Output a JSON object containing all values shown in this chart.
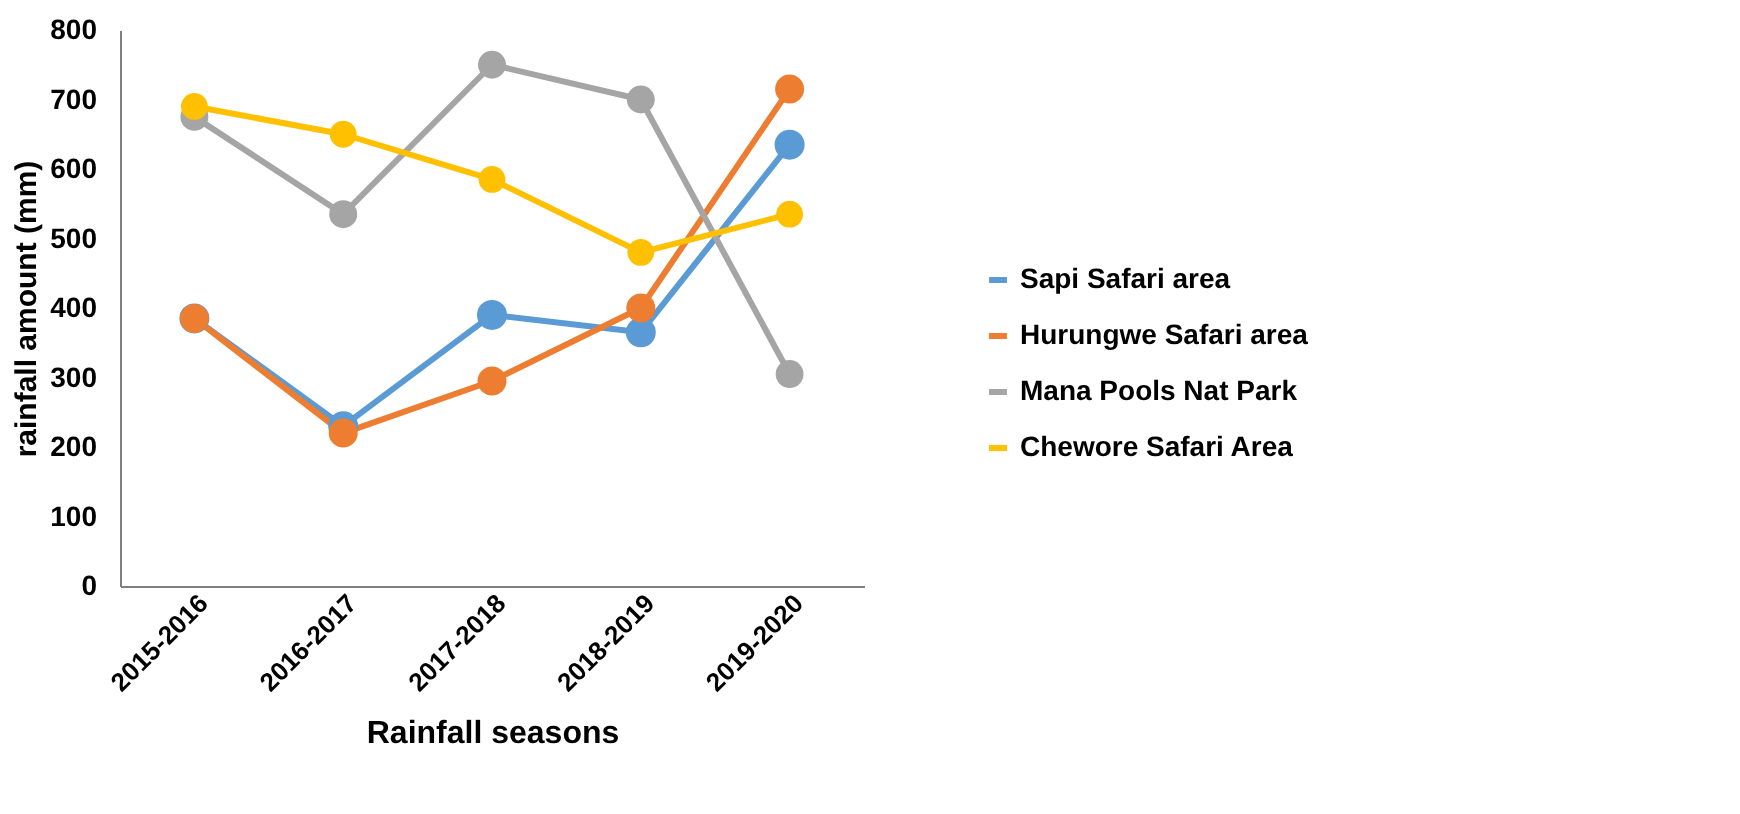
{
  "chart_data": {
    "type": "line",
    "xlabel": "Rainfall seasons",
    "ylabel": "rainfall amount  (mm)",
    "categories": [
      "2015-2016",
      "2016-2017",
      "2017-2018",
      "2018-2019",
      "2019-2020"
    ],
    "series": [
      {
        "name": "Sapi Safari area",
        "color": "#5b9bd5",
        "values": [
          385,
          230,
          390,
          365,
          635
        ]
      },
      {
        "name": "Hurungwe Safari area",
        "color": "#ed7d31",
        "values": [
          385,
          220,
          295,
          400,
          715
        ]
      },
      {
        "name": "Mana Pools Nat Park",
        "color": "#a5a5a5",
        "values": [
          675,
          535,
          750,
          700,
          305
        ]
      },
      {
        "name": "Chewore Safari Area",
        "color": "#ffc000",
        "values": [
          690,
          650,
          585,
          480,
          535
        ]
      }
    ],
    "ylim": [
      0,
      800
    ],
    "yticks": [
      0,
      100,
      200,
      300,
      400,
      500,
      600,
      700,
      800
    ],
    "grid": false,
    "legend": "right",
    "marker": "circle",
    "line_style": "solid"
  }
}
